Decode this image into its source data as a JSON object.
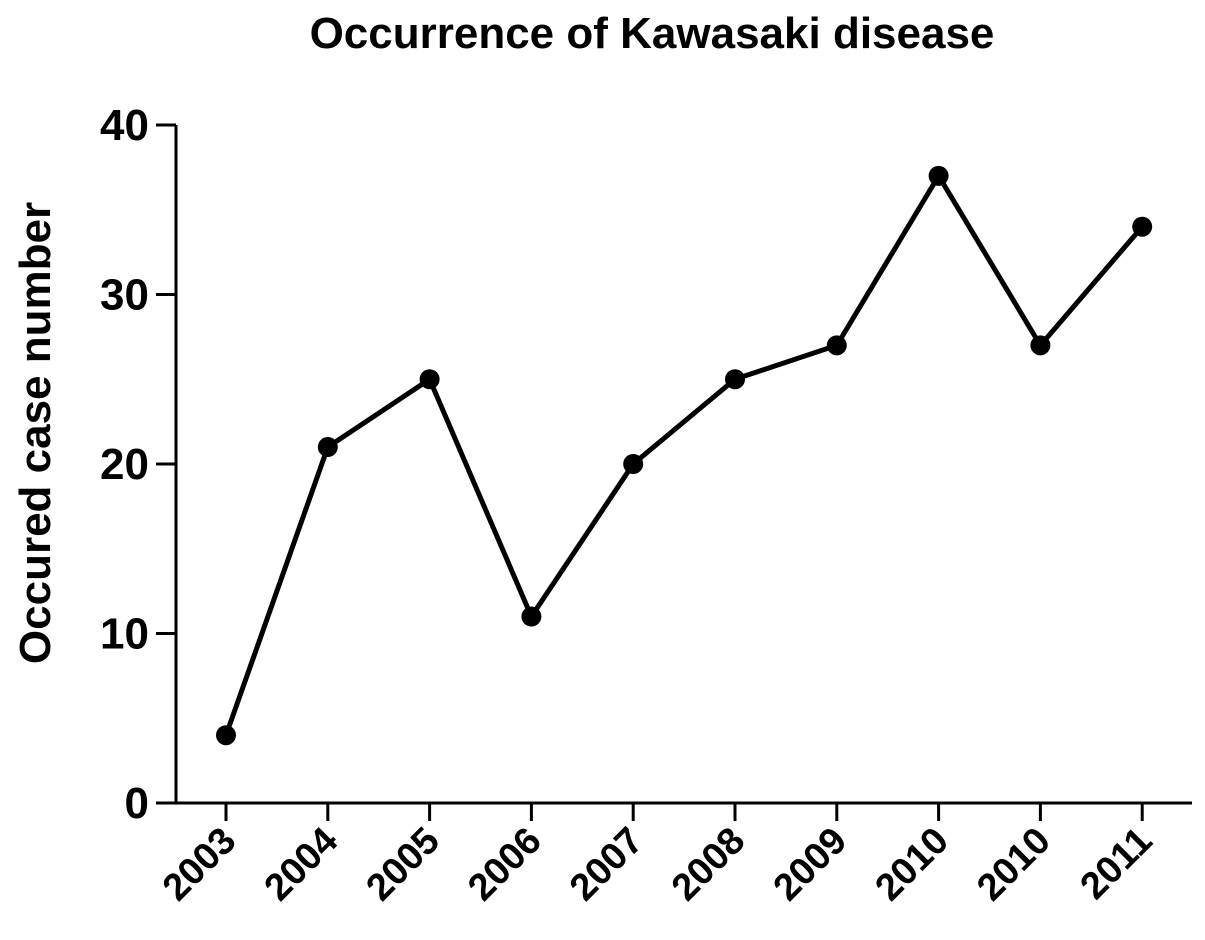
{
  "chart_data": {
    "type": "line",
    "title": "Occurrence of Kawasaki disease",
    "xlabel": "",
    "ylabel": "Occured case number",
    "categories": [
      "2003",
      "2004",
      "2005",
      "2006",
      "2007",
      "2008",
      "2009",
      "2010",
      "2010",
      "2011"
    ],
    "series": [
      {
        "values": [
          4,
          21,
          25,
          11,
          20,
          25,
          27,
          37,
          27,
          34
        ]
      }
    ],
    "ylim": [
      0,
      40
    ],
    "yticks": [
      0,
      10,
      20,
      30,
      40
    ],
    "grid": false,
    "legend": "none",
    "colors": {
      "line": "#000000",
      "marker": "#000000",
      "axis": "#000000",
      "text": "#000000",
      "background": "#ffffff"
    }
  }
}
